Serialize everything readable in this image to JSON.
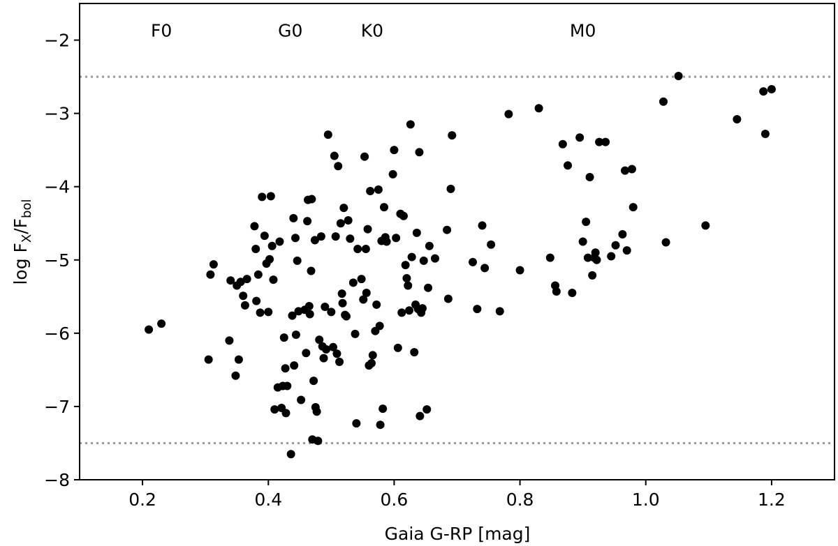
{
  "chart_data": {
    "type": "scatter",
    "xlabel": "Gaia G-RP [mag]",
    "ylabel": {
      "main": "log F",
      "sub1": "X",
      "mid": "/F",
      "sub2": "bol"
    },
    "xlim": [
      0.1,
      1.3
    ],
    "ylim": [
      -8.0,
      -1.5
    ],
    "xticks": [
      0.2,
      0.4,
      0.6,
      0.8,
      1.0,
      1.2
    ],
    "xtick_labels": [
      "0.2",
      "0.4",
      "0.6",
      "0.8",
      "1.0",
      "1.2"
    ],
    "yticks": [
      -8,
      -7,
      -6,
      -5,
      -4,
      -3,
      -2
    ],
    "ytick_labels": [
      "−8",
      "−7",
      "−6",
      "−5",
      "−4",
      "−3",
      "−2"
    ],
    "hlines": [
      -2.5,
      -7.5
    ],
    "hline_color": "#999999",
    "marker_color": "#000000",
    "annotations": [
      {
        "text": "F0",
        "x": 0.23,
        "y": -1.95
      },
      {
        "text": "G0",
        "x": 0.435,
        "y": -1.95
      },
      {
        "text": "K0",
        "x": 0.565,
        "y": -1.95
      },
      {
        "text": "M0",
        "x": 0.9,
        "y": -1.95
      }
    ],
    "points": [
      [
        0.21,
        -5.95
      ],
      [
        0.23,
        -5.87
      ],
      [
        0.305,
        -6.36
      ],
      [
        0.308,
        -5.2
      ],
      [
        0.313,
        -5.06
      ],
      [
        0.338,
        -6.1
      ],
      [
        0.34,
        -5.28
      ],
      [
        0.348,
        -6.58
      ],
      [
        0.35,
        -5.35
      ],
      [
        0.353,
        -6.36
      ],
      [
        0.356,
        -5.3
      ],
      [
        0.36,
        -5.49
      ],
      [
        0.363,
        -5.62
      ],
      [
        0.366,
        -5.26
      ],
      [
        0.378,
        -4.54
      ],
      [
        0.38,
        -4.85
      ],
      [
        0.381,
        -5.56
      ],
      [
        0.384,
        -5.2
      ],
      [
        0.387,
        -5.72
      ],
      [
        0.39,
        -4.14
      ],
      [
        0.394,
        -4.67
      ],
      [
        0.397,
        -5.05
      ],
      [
        0.4,
        -5.71
      ],
      [
        0.402,
        -4.99
      ],
      [
        0.404,
        -4.13
      ],
      [
        0.406,
        -4.81
      ],
      [
        0.408,
        -5.27
      ],
      [
        0.41,
        -7.04
      ],
      [
        0.415,
        -6.74
      ],
      [
        0.418,
        -4.75
      ],
      [
        0.421,
        -7.02
      ],
      [
        0.423,
        -6.72
      ],
      [
        0.425,
        -6.06
      ],
      [
        0.427,
        -6.48
      ],
      [
        0.428,
        -7.09
      ],
      [
        0.43,
        -6.72
      ],
      [
        0.436,
        -7.65
      ],
      [
        0.438,
        -5.76
      ],
      [
        0.44,
        -4.43
      ],
      [
        0.441,
        -6.44
      ],
      [
        0.443,
        -4.7
      ],
      [
        0.444,
        -6.02
      ],
      [
        0.446,
        -5.01
      ],
      [
        0.448,
        -5.7
      ],
      [
        0.452,
        -6.91
      ],
      [
        0.458,
        -5.68
      ],
      [
        0.46,
        -6.27
      ],
      [
        0.462,
        -4.47
      ],
      [
        0.463,
        -4.18
      ],
      [
        0.465,
        -5.63
      ],
      [
        0.466,
        -5.74
      ],
      [
        0.468,
        -5.15
      ],
      [
        0.469,
        -4.17
      ],
      [
        0.47,
        -7.45
      ],
      [
        0.472,
        -6.65
      ],
      [
        0.474,
        -4.73
      ],
      [
        0.475,
        -7.01
      ],
      [
        0.477,
        -7.07
      ],
      [
        0.479,
        -7.47
      ],
      [
        0.481,
        -6.09
      ],
      [
        0.484,
        -4.68
      ],
      [
        0.486,
        -6.18
      ],
      [
        0.488,
        -6.34
      ],
      [
        0.49,
        -5.64
      ],
      [
        0.492,
        -6.22
      ],
      [
        0.495,
        -3.29
      ],
      [
        0.5,
        -5.71
      ],
      [
        0.503,
        -6.19
      ],
      [
        0.505,
        -3.58
      ],
      [
        0.507,
        -4.68
      ],
      [
        0.509,
        -6.28
      ],
      [
        0.511,
        -3.72
      ],
      [
        0.513,
        -6.39
      ],
      [
        0.515,
        -4.5
      ],
      [
        0.517,
        -5.46
      ],
      [
        0.518,
        -5.59
      ],
      [
        0.52,
        -4.29
      ],
      [
        0.522,
        -5.75
      ],
      [
        0.524,
        -5.77
      ],
      [
        0.527,
        -4.46
      ],
      [
        0.53,
        -4.71
      ],
      [
        0.535,
        -5.31
      ],
      [
        0.538,
        -6.01
      ],
      [
        0.54,
        -7.23
      ],
      [
        0.542,
        -4.85
      ],
      [
        0.548,
        -5.26
      ],
      [
        0.551,
        -5.54
      ],
      [
        0.553,
        -3.59
      ],
      [
        0.555,
        -4.85
      ],
      [
        0.556,
        -5.45
      ],
      [
        0.558,
        -4.58
      ],
      [
        0.56,
        -6.44
      ],
      [
        0.562,
        -4.06
      ],
      [
        0.564,
        -6.41
      ],
      [
        0.566,
        -6.3
      ],
      [
        0.57,
        -5.97
      ],
      [
        0.572,
        -5.61
      ],
      [
        0.575,
        -4.04
      ],
      [
        0.577,
        -5.9
      ],
      [
        0.578,
        -7.25
      ],
      [
        0.58,
        -4.74
      ],
      [
        0.582,
        -7.03
      ],
      [
        0.584,
        -4.28
      ],
      [
        0.586,
        -4.69
      ],
      [
        0.588,
        -4.75
      ],
      [
        0.598,
        -3.83
      ],
      [
        0.6,
        -3.5
      ],
      [
        0.603,
        -4.7
      ],
      [
        0.606,
        -6.2
      ],
      [
        0.61,
        -4.37
      ],
      [
        0.612,
        -5.72
      ],
      [
        0.615,
        -4.4
      ],
      [
        0.618,
        -5.07
      ],
      [
        0.62,
        -5.25
      ],
      [
        0.622,
        -5.35
      ],
      [
        0.624,
        -5.69
      ],
      [
        0.626,
        -3.15
      ],
      [
        0.628,
        -4.96
      ],
      [
        0.632,
        -6.26
      ],
      [
        0.634,
        -5.61
      ],
      [
        0.636,
        -4.63
      ],
      [
        0.638,
        -5.67
      ],
      [
        0.64,
        -3.53
      ],
      [
        0.641,
        -7.13
      ],
      [
        0.643,
        -5.72
      ],
      [
        0.645,
        -5.66
      ],
      [
        0.647,
        -5.01
      ],
      [
        0.652,
        -7.04
      ],
      [
        0.654,
        -5.38
      ],
      [
        0.656,
        -4.81
      ],
      [
        0.665,
        -4.98
      ],
      [
        0.684,
        -4.59
      ],
      [
        0.686,
        -5.53
      ],
      [
        0.69,
        -4.03
      ],
      [
        0.692,
        -3.3
      ],
      [
        0.725,
        -5.03
      ],
      [
        0.732,
        -5.67
      ],
      [
        0.74,
        -4.53
      ],
      [
        0.744,
        -5.11
      ],
      [
        0.754,
        -4.79
      ],
      [
        0.768,
        -5.7
      ],
      [
        0.782,
        -3.01
      ],
      [
        0.8,
        -5.14
      ],
      [
        0.83,
        -2.93
      ],
      [
        0.848,
        -4.97
      ],
      [
        0.856,
        -5.35
      ],
      [
        0.858,
        -5.43
      ],
      [
        0.868,
        -3.42
      ],
      [
        0.876,
        -3.71
      ],
      [
        0.883,
        -5.45
      ],
      [
        0.895,
        -3.33
      ],
      [
        0.9,
        -4.75
      ],
      [
        0.905,
        -4.48
      ],
      [
        0.908,
        -4.97
      ],
      [
        0.911,
        -3.87
      ],
      [
        0.915,
        -5.21
      ],
      [
        0.918,
        -4.97
      ],
      [
        0.92,
        -4.9
      ],
      [
        0.922,
        -5.0
      ],
      [
        0.926,
        -3.39
      ],
      [
        0.936,
        -3.39
      ],
      [
        0.945,
        -4.95
      ],
      [
        0.952,
        -4.8
      ],
      [
        0.963,
        -4.65
      ],
      [
        0.967,
        -3.78
      ],
      [
        0.97,
        -4.87
      ],
      [
        0.978,
        -3.76
      ],
      [
        0.98,
        -4.28
      ],
      [
        1.028,
        -2.84
      ],
      [
        1.032,
        -4.76
      ],
      [
        1.052,
        -2.49
      ],
      [
        1.095,
        -4.53
      ],
      [
        1.145,
        -3.08
      ],
      [
        1.187,
        -2.7
      ],
      [
        1.19,
        -3.28
      ],
      [
        1.2,
        -2.67
      ]
    ]
  }
}
